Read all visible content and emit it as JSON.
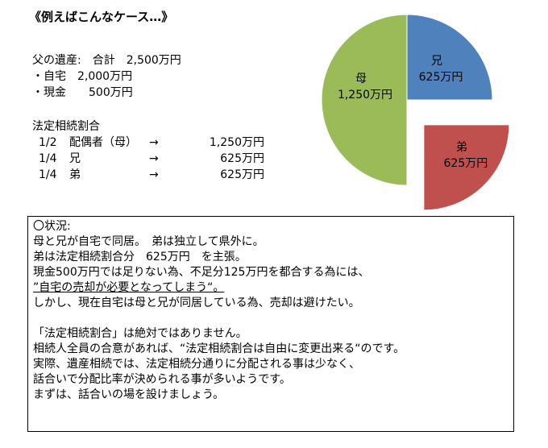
{
  "header": {
    "title": "《例えばこんなケース…》",
    "estate_line": "父の遺産:　合計　2,500万円",
    "house_line": "・自宅　2,000万円",
    "cash_line": "・現金　　500万円"
  },
  "legal_shares": {
    "heading": "法定相続割合",
    "rows": [
      {
        "fraction": "1/2",
        "name": "配偶者（母）",
        "arrow": "→",
        "amount": "1,250万円"
      },
      {
        "fraction": "1/4",
        "name": "兄",
        "arrow": "→",
        "amount": "625万円"
      },
      {
        "fraction": "1/4",
        "name": "弟",
        "arrow": "→",
        "amount": "625万円"
      }
    ]
  },
  "chart_data": {
    "type": "pie",
    "unit": "万円",
    "slices": [
      {
        "name": "母",
        "value": 1250,
        "label": "1,250万円",
        "color": "#9BBB59",
        "exploded": false
      },
      {
        "name": "兄",
        "value": 625,
        "label": "625万円",
        "color": "#4F81BD",
        "exploded": false
      },
      {
        "name": "弟",
        "value": 625,
        "label": "625万円",
        "color": "#C0504D",
        "exploded": true
      }
    ]
  },
  "situation": {
    "lines": [
      "〇状況:",
      "母と兄が自宅で同居。　弟は独立して県外に。",
      "弟は法定相続割合分　625万円　を主張。",
      "現金500万円では足りない為、不足分125万円を都合する為には、",
      "”自宅の売却が必要となってしまう“。",
      "しかし、現在自宅は母と兄が同居している為、売却は避けたい。",
      "",
      "「法定相続割合」は絶対ではありません。",
      "相続人全員の合意があれば、“法定相続割合は自由に変更出来る“のです。",
      "実際、遺産相続では、法定相続分通りに分配される事は少なく、",
      "話合いで分配比率が決められる事が多いようです。",
      "まずは、話合いの場を設けましょう。"
    ]
  }
}
